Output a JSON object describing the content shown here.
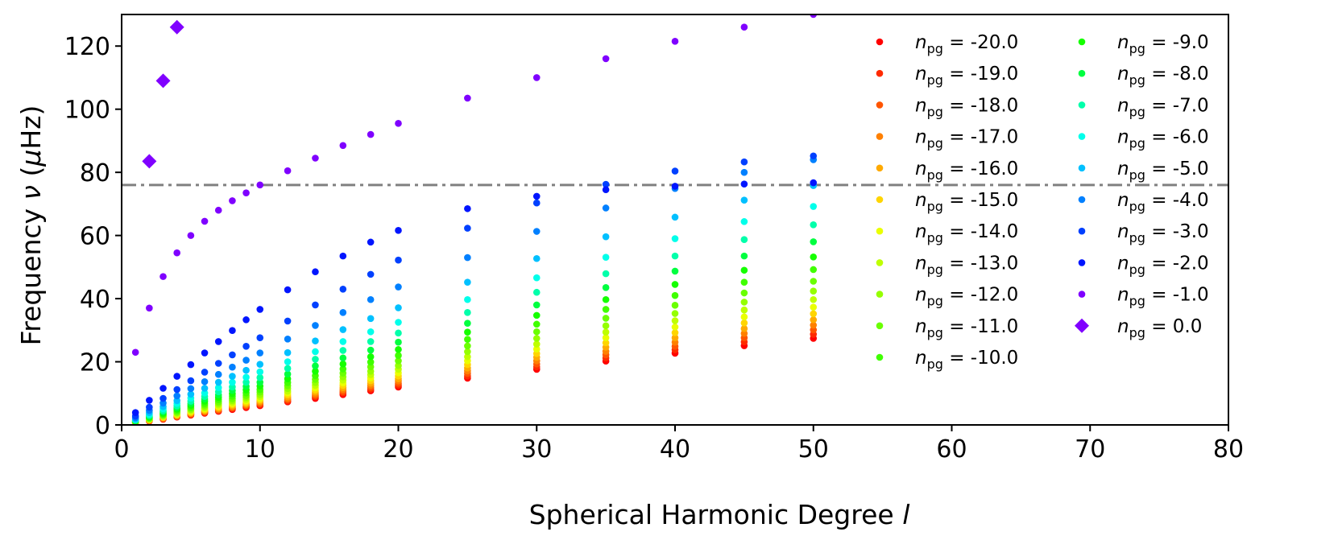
{
  "chart_data": {
    "type": "scatter",
    "xlabel_text": "Spherical Harmonic Degree ",
    "xlabel_var": "l",
    "ylabel_text_pre": "Frequency ",
    "ylabel_var": "ν",
    "ylabel_text_post": " (",
    "ylabel_unit_var": "μ",
    "ylabel_unit": "Hz)",
    "xlim": [
      0,
      80
    ],
    "ylim": [
      0,
      130
    ],
    "xticks": [
      0,
      10,
      20,
      30,
      40,
      50,
      60,
      70,
      80
    ],
    "yticks": [
      0,
      20,
      40,
      60,
      80,
      100,
      120
    ],
    "hline": {
      "y": 76,
      "style": "dashdot",
      "color": "#808080"
    },
    "legend_position": "upper-right, two columns",
    "x": [
      1,
      2,
      3,
      4,
      5,
      6,
      7,
      8,
      9,
      10,
      12,
      14,
      16,
      18,
      20,
      25,
      30,
      35,
      40,
      45,
      50
    ],
    "series": [
      {
        "name": "-20.0",
        "npg": -20,
        "color": "#ff0000",
        "marker": "circle",
        "values": [
          0.6,
          1.2,
          1.8,
          2.5,
          3.1,
          3.7,
          4.3,
          4.9,
          5.5,
          6.1,
          7.3,
          8.4,
          9.6,
          10.8,
          12.0,
          14.8,
          17.6,
          20.2,
          22.7,
          25.1,
          27.4
        ]
      },
      {
        "name": "-19.0",
        "npg": -19,
        "color": "#ff2a00",
        "marker": "circle",
        "values": [
          0.7,
          1.3,
          1.9,
          2.6,
          3.2,
          3.9,
          4.5,
          5.2,
          5.8,
          6.4,
          7.6,
          8.9,
          10.1,
          11.3,
          12.6,
          15.5,
          18.4,
          21.2,
          23.8,
          26.3,
          28.7
        ]
      },
      {
        "name": "-18.0",
        "npg": -18,
        "color": "#ff5500",
        "marker": "circle",
        "values": [
          0.7,
          1.4,
          2.0,
          2.7,
          3.4,
          4.1,
          4.7,
          5.4,
          6.1,
          6.7,
          8.0,
          9.3,
          10.6,
          11.9,
          13.2,
          16.3,
          19.3,
          22.2,
          24.9,
          27.6,
          30.1
        ]
      },
      {
        "name": "-17.0",
        "npg": -17,
        "color": "#ff8000",
        "marker": "circle",
        "values": [
          0.7,
          1.4,
          2.1,
          2.9,
          3.6,
          4.3,
          5.0,
          5.7,
          6.4,
          7.1,
          8.4,
          9.8,
          11.2,
          12.5,
          13.9,
          17.1,
          20.3,
          23.3,
          26.2,
          29.0,
          31.6
        ]
      },
      {
        "name": "-16.0",
        "npg": -16,
        "color": "#ffaa00",
        "marker": "circle",
        "values": [
          0.8,
          1.5,
          2.3,
          3.0,
          3.8,
          4.5,
          5.3,
          6.0,
          6.7,
          7.5,
          8.9,
          10.4,
          11.8,
          13.2,
          14.6,
          18.0,
          21.4,
          24.6,
          27.6,
          30.5,
          33.3
        ]
      },
      {
        "name": "-15.0",
        "npg": -15,
        "color": "#ffd500",
        "marker": "circle",
        "values": [
          0.8,
          1.6,
          2.4,
          3.2,
          4.0,
          4.8,
          5.6,
          6.4,
          7.1,
          7.9,
          9.5,
          11.0,
          12.5,
          14.0,
          15.5,
          19.1,
          22.6,
          26.0,
          29.2,
          32.3,
          35.2
        ]
      },
      {
        "name": "-14.0",
        "npg": -14,
        "color": "#eaff00",
        "marker": "circle",
        "values": [
          0.9,
          1.7,
          2.6,
          3.4,
          4.3,
          5.1,
          5.9,
          6.8,
          7.6,
          8.4,
          10.1,
          11.7,
          13.3,
          14.9,
          16.5,
          20.3,
          24.0,
          27.6,
          31.0,
          34.2,
          37.3
        ]
      },
      {
        "name": "-13.0",
        "npg": -13,
        "color": "#bfff00",
        "marker": "circle",
        "values": [
          0.9,
          1.8,
          2.7,
          3.6,
          4.6,
          5.4,
          6.3,
          7.2,
          8.1,
          9.0,
          10.7,
          12.5,
          14.2,
          15.9,
          17.6,
          21.6,
          25.6,
          29.4,
          33.0,
          36.4,
          39.7
        ]
      },
      {
        "name": "-12.0",
        "npg": -12,
        "color": "#95ff00",
        "marker": "circle",
        "values": [
          1.0,
          1.9,
          2.9,
          3.9,
          4.9,
          5.8,
          6.8,
          7.7,
          8.7,
          9.6,
          11.5,
          13.4,
          15.2,
          17.0,
          18.8,
          23.2,
          27.4,
          31.4,
          35.3,
          38.9,
          42.4
        ]
      },
      {
        "name": "-11.0",
        "npg": -11,
        "color": "#6aff00",
        "marker": "circle",
        "values": [
          1.1,
          2.1,
          3.2,
          4.2,
          5.3,
          6.3,
          7.3,
          8.3,
          9.3,
          10.4,
          12.4,
          14.4,
          16.4,
          18.4,
          20.3,
          25.0,
          29.5,
          33.8,
          37.9,
          41.8,
          45.5
        ]
      },
      {
        "name": "-10.0",
        "npg": -10,
        "color": "#40ff00",
        "marker": "circle",
        "values": [
          1.1,
          2.3,
          3.4,
          4.6,
          5.7,
          6.8,
          8.0,
          9.1,
          10.1,
          11.2,
          13.4,
          15.6,
          17.7,
          19.9,
          22.0,
          27.1,
          31.9,
          36.6,
          41.0,
          45.2,
          49.2
        ]
      },
      {
        "name": "-9.0",
        "npg": -9,
        "color": "#15ff00",
        "marker": "circle",
        "values": [
          1.2,
          2.5,
          3.7,
          5.0,
          6.2,
          7.5,
          8.7,
          9.9,
          11.1,
          12.3,
          14.6,
          17.0,
          19.3,
          21.6,
          23.9,
          29.4,
          34.7,
          39.7,
          44.5,
          49.0,
          53.2
        ]
      },
      {
        "name": "-8.0",
        "npg": -8,
        "color": "#00ff40",
        "marker": "circle",
        "values": [
          1.4,
          2.7,
          4.1,
          5.4,
          6.8,
          8.2,
          9.5,
          10.9,
          12.2,
          13.5,
          16.1,
          18.7,
          21.2,
          23.7,
          26.2,
          32.2,
          38.0,
          43.5,
          48.7,
          53.5,
          58.0
        ]
      },
      {
        "name": "-7.0",
        "npg": -7,
        "color": "#00ffaa",
        "marker": "circle",
        "values": [
          1.5,
          3.0,
          4.5,
          6.0,
          7.5,
          9.0,
          10.5,
          12.0,
          13.5,
          15.0,
          17.9,
          20.8,
          23.6,
          26.4,
          29.1,
          35.6,
          42.0,
          47.9,
          53.5,
          58.7,
          63.4
        ]
      },
      {
        "name": "-6.0",
        "npg": -6,
        "color": "#00ffea",
        "marker": "circle",
        "values": [
          1.7,
          3.4,
          5.1,
          6.8,
          8.5,
          10.1,
          11.8,
          13.5,
          15.1,
          16.8,
          20.0,
          23.2,
          26.4,
          29.5,
          32.5,
          39.7,
          46.6,
          53.1,
          59.0,
          64.4,
          69.2
        ]
      },
      {
        "name": "-5.0",
        "npg": -5,
        "color": "#00c0ff",
        "marker": "circle",
        "values": [
          1.9,
          3.9,
          5.8,
          7.7,
          9.7,
          11.6,
          13.5,
          15.4,
          17.3,
          19.2,
          22.9,
          26.6,
          30.2,
          33.7,
          37.1,
          45.2,
          52.7,
          59.6,
          65.8,
          71.2,
          75.8
        ]
      },
      {
        "name": "-4.0",
        "npg": -4,
        "color": "#0080ff",
        "marker": "circle",
        "values": [
          2.3,
          4.6,
          6.9,
          9.2,
          11.5,
          13.7,
          16.0,
          18.3,
          20.5,
          22.8,
          27.2,
          31.5,
          35.6,
          39.7,
          43.7,
          53.0,
          61.3,
          68.7,
          74.9,
          80.0,
          84.0
        ]
      },
      {
        "name": "-3.0",
        "npg": -3,
        "color": "#0040ff",
        "marker": "circle",
        "values": [
          2.8,
          5.6,
          8.4,
          11.2,
          14.0,
          16.7,
          19.5,
          22.2,
          24.9,
          27.6,
          32.9,
          38.0,
          43.0,
          47.7,
          52.2,
          62.3,
          70.3,
          76.2,
          80.4,
          83.3,
          85.2
        ]
      },
      {
        "name": "-2.0",
        "npg": -2,
        "color": "#0015ff",
        "marker": "circle",
        "values": [
          3.9,
          7.8,
          11.6,
          15.4,
          19.1,
          22.8,
          26.4,
          29.9,
          33.3,
          36.6,
          42.8,
          48.5,
          53.5,
          57.9,
          61.6,
          68.5,
          72.4,
          74.5,
          75.6,
          76.3,
          76.7
        ]
      },
      {
        "name": "-1.0",
        "npg": -1,
        "color": "#7f00ff",
        "marker": "circle",
        "values": [
          23.0,
          37.0,
          47.0,
          54.5,
          60.0,
          64.5,
          68.0,
          71.0,
          73.5,
          76.0,
          80.5,
          84.5,
          88.5,
          92.0,
          95.5,
          103.5,
          110.0,
          116.0,
          121.5,
          126.0,
          130.0
        ]
      },
      {
        "name": "0.0",
        "npg": 0,
        "color": "#8000ff",
        "marker": "diamond",
        "x": [
          2,
          3,
          4
        ],
        "values": [
          83.5,
          109.0,
          126.0
        ]
      }
    ]
  }
}
